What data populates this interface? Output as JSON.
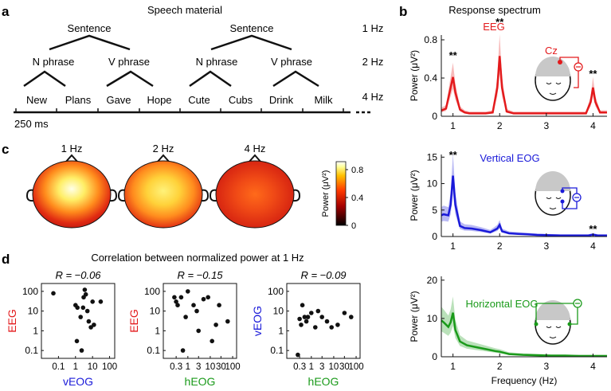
{
  "panels": {
    "a": {
      "letter": "a",
      "title": "Speech material",
      "sentence_label": "Sentence",
      "phrase_labels": [
        "N phrase",
        "V phrase",
        "N phrase",
        "V phrase"
      ],
      "words": [
        "New",
        "Plans",
        "Gave",
        "Hope",
        "Cute",
        "Cubs",
        "Drink",
        "Milk"
      ],
      "rate_labels": [
        "1 Hz",
        "2 Hz",
        "4 Hz"
      ],
      "scale_label": "250 ms"
    },
    "b": {
      "letter": "b",
      "title": "Response spectrum"
    },
    "c": {
      "letter": "c",
      "topo_labels": [
        "1 Hz",
        "2 Hz",
        "4 Hz"
      ],
      "colorbar_label": "Power (μV²)",
      "colorbar_ticks": [
        "0.8",
        "0.4",
        "0"
      ],
      "colors": {
        "low": "#000000",
        "mid": "#cc0000",
        "high": "#ffff99",
        "max": "#ffffff"
      }
    },
    "d": {
      "letter": "d",
      "title": "Correlation between normalized power at 1 Hz"
    }
  },
  "chart_data": [
    {
      "type": "line",
      "name": "EEG",
      "color": "#e31a1c",
      "ylabel": "Power (μV²)",
      "xlim": [
        0.75,
        4.3
      ],
      "ylim": [
        0,
        0.85
      ],
      "yticks": [
        "0",
        "0.4",
        "0.8"
      ],
      "xticks": [
        "1",
        "2",
        "3",
        "4"
      ],
      "x": [
        0.75,
        0.85,
        0.95,
        1.0,
        1.05,
        1.15,
        1.25,
        1.35,
        1.5,
        1.7,
        1.85,
        1.95,
        2.0,
        2.05,
        2.15,
        2.3,
        2.5,
        2.7,
        2.9,
        3.1,
        3.3,
        3.5,
        3.7,
        3.85,
        3.95,
        4.0,
        4.05,
        4.15,
        4.3
      ],
      "y": [
        0.06,
        0.08,
        0.3,
        0.41,
        0.25,
        0.07,
        0.04,
        0.03,
        0.03,
        0.03,
        0.04,
        0.3,
        0.63,
        0.3,
        0.05,
        0.03,
        0.03,
        0.03,
        0.03,
        0.03,
        0.03,
        0.03,
        0.03,
        0.03,
        0.15,
        0.3,
        0.15,
        0.04,
        0.04
      ],
      "annotations": [
        {
          "x": 1,
          "text": "**"
        },
        {
          "x": 2,
          "text": "**"
        },
        {
          "x": 4,
          "text": "**"
        }
      ],
      "electrode_label": "Cz"
    },
    {
      "type": "line",
      "name": "Vertical EOG",
      "color": "#1a1ad9",
      "ylabel": "Power (μV²)",
      "xlim": [
        0.75,
        4.3
      ],
      "ylim": [
        0,
        15.5
      ],
      "yticks": [
        "0",
        "5",
        "10",
        "15"
      ],
      "xticks": [
        "1",
        "2",
        "3",
        "4"
      ],
      "x": [
        0.75,
        0.8,
        0.9,
        0.95,
        1.0,
        1.05,
        1.15,
        1.25,
        1.4,
        1.6,
        1.8,
        1.95,
        2.0,
        2.05,
        2.2,
        2.4,
        2.6,
        2.8,
        3.0,
        3.3,
        3.6,
        3.9,
        4.0,
        4.1,
        4.3
      ],
      "y": [
        4.0,
        4.2,
        4.0,
        6.0,
        11.5,
        6.0,
        2.0,
        1.6,
        1.5,
        1.2,
        0.8,
        1.5,
        2.2,
        1.0,
        0.6,
        0.5,
        0.4,
        0.3,
        0.25,
        0.2,
        0.2,
        0.2,
        0.35,
        0.2,
        0.2
      ],
      "annotations": [
        {
          "x": 1,
          "text": "**"
        },
        {
          "x": 4,
          "text": "**"
        }
      ]
    },
    {
      "type": "line",
      "name": "Horizontal EOG",
      "color": "#1a9a1a",
      "ylabel": "Power (μV²)",
      "xlabel": "Frequency (Hz)",
      "xlim": [
        0.75,
        4.3
      ],
      "ylim": [
        0,
        21
      ],
      "yticks": [
        "0",
        "10",
        "20"
      ],
      "xticks": [
        "1",
        "2",
        "3",
        "4"
      ],
      "x": [
        0.75,
        0.8,
        0.9,
        0.95,
        1.0,
        1.05,
        1.15,
        1.3,
        1.5,
        1.7,
        1.9,
        2.0,
        2.2,
        2.5,
        2.8,
        3.1,
        3.4,
        3.7,
        4.0,
        4.3
      ],
      "y": [
        9.5,
        9.0,
        7.8,
        9.0,
        11.5,
        7.0,
        4.0,
        3.0,
        2.5,
        2.0,
        1.5,
        1.3,
        0.7,
        0.5,
        0.4,
        0.3,
        0.3,
        0.2,
        0.2,
        0.2
      ]
    },
    {
      "type": "scatter",
      "title": "R = −0.06",
      "xlabel": "vEOG",
      "ylabel": "EEG",
      "log_x": true,
      "log_y": true,
      "xlim": [
        0.01,
        200
      ],
      "ylim": [
        0.04,
        250
      ],
      "xticks": [
        "0.1",
        "1",
        "10",
        "100"
      ],
      "yticks": [
        "0.1",
        "1",
        "10",
        "100"
      ],
      "x": [
        0.05,
        1.0,
        1.3,
        2.0,
        2.3,
        2.8,
        3.0,
        3.5,
        4.0,
        5.0,
        6.0,
        8.0,
        10.0,
        12.0,
        30.0,
        1.2
      ],
      "y": [
        80,
        20,
        15,
        5,
        0.1,
        15,
        50,
        120,
        70,
        10,
        3,
        1.5,
        30,
        2,
        30,
        0.3
      ]
    },
    {
      "type": "scatter",
      "title": "R = −0.15",
      "xlabel": "hEOG",
      "ylabel": "EEG",
      "log_x": true,
      "log_y": true,
      "xlim": [
        0.08,
        150
      ],
      "ylim": [
        0.04,
        250
      ],
      "xticks": [
        "0.3",
        "1",
        "3",
        "10",
        "30",
        "100"
      ],
      "yticks": [
        "0.1",
        "1",
        "10",
        "100"
      ],
      "x": [
        0.25,
        0.3,
        0.35,
        0.5,
        0.6,
        0.8,
        1.0,
        1.8,
        2.5,
        3.0,
        5.0,
        8.0,
        12.0,
        18.0,
        25.0,
        60.0
      ],
      "y": [
        50,
        30,
        20,
        50,
        0.1,
        5,
        100,
        20,
        10,
        1,
        40,
        50,
        0.3,
        2,
        20,
        3
      ]
    },
    {
      "type": "scatter",
      "title": "R = −0.09",
      "xlabel": "hEOG",
      "ylabel": "vEOG",
      "log_x": true,
      "log_y": true,
      "xlim": [
        0.08,
        150
      ],
      "ylim": [
        0.04,
        250
      ],
      "xticks": [
        "0.3",
        "1",
        "3",
        "10",
        "30",
        "100"
      ],
      "yticks": [
        "0.1",
        "1",
        "10",
        "100"
      ],
      "x": [
        0.25,
        0.3,
        0.35,
        0.4,
        0.5,
        0.6,
        0.7,
        1.0,
        1.5,
        2.0,
        3.0,
        5.0,
        8.0,
        15.0,
        30.0,
        60.0
      ],
      "y": [
        0.06,
        4,
        2,
        20,
        5,
        3,
        5,
        8,
        1.5,
        10,
        5,
        3,
        1.5,
        2,
        8,
        5
      ]
    }
  ]
}
